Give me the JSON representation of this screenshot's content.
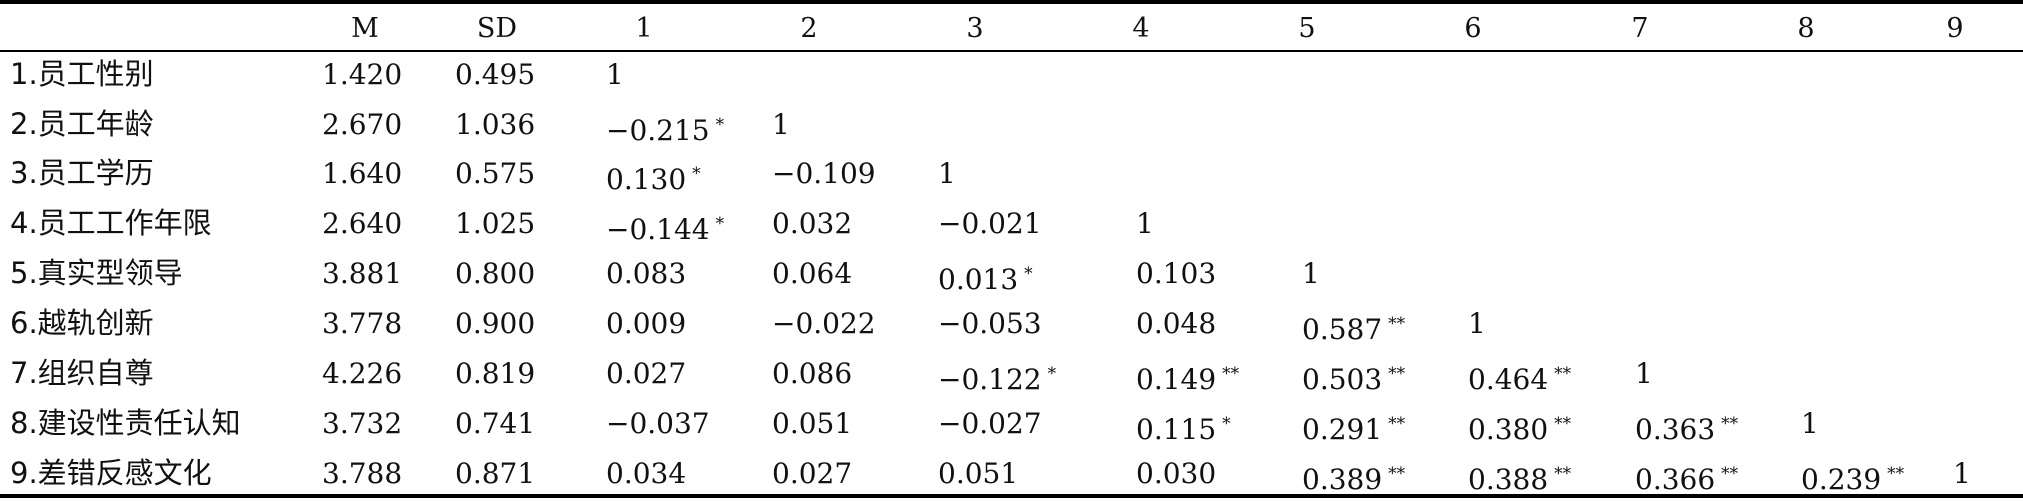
{
  "header": [
    "M",
    "SD",
    "1",
    "2",
    "3",
    "4",
    "5",
    "6",
    "7",
    "8",
    "9"
  ],
  "rows": [
    {
      "label": "1.员工性别",
      "m": "1.420",
      "sd": "0.495",
      "cells": [
        {
          "v": "1",
          "s": ""
        }
      ]
    },
    {
      "label": "2.员工年龄",
      "m": "2.670",
      "sd": "1.036",
      "cells": [
        {
          "v": "−0.215",
          "s": "*"
        },
        {
          "v": "1",
          "s": ""
        }
      ]
    },
    {
      "label": "3.员工学历",
      "m": "1.640",
      "sd": "0.575",
      "cells": [
        {
          "v": "0.130",
          "s": "*"
        },
        {
          "v": "−0.109",
          "s": ""
        },
        {
          "v": "1",
          "s": ""
        }
      ]
    },
    {
      "label": "4.员工工作年限",
      "m": "2.640",
      "sd": "1.025",
      "cells": [
        {
          "v": "−0.144",
          "s": "*"
        },
        {
          "v": "0.032",
          "s": ""
        },
        {
          "v": "−0.021",
          "s": ""
        },
        {
          "v": "1",
          "s": ""
        }
      ]
    },
    {
      "label": "5.真实型领导",
      "m": "3.881",
      "sd": "0.800",
      "cells": [
        {
          "v": "0.083",
          "s": ""
        },
        {
          "v": "0.064",
          "s": ""
        },
        {
          "v": "0.013",
          "s": "*"
        },
        {
          "v": "0.103",
          "s": ""
        },
        {
          "v": "1",
          "s": ""
        }
      ]
    },
    {
      "label": "6.越轨创新",
      "m": "3.778",
      "sd": "0.900",
      "cells": [
        {
          "v": "0.009",
          "s": ""
        },
        {
          "v": "−0.022",
          "s": ""
        },
        {
          "v": "−0.053",
          "s": ""
        },
        {
          "v": "0.048",
          "s": ""
        },
        {
          "v": "0.587",
          "s": "**"
        },
        {
          "v": "1",
          "s": ""
        }
      ]
    },
    {
      "label": "7.组织自尊",
      "m": "4.226",
      "sd": "0.819",
      "cells": [
        {
          "v": "0.027",
          "s": ""
        },
        {
          "v": "0.086",
          "s": ""
        },
        {
          "v": "−0.122",
          "s": "*"
        },
        {
          "v": "0.149",
          "s": "**"
        },
        {
          "v": "0.503",
          "s": "**"
        },
        {
          "v": "0.464",
          "s": "**"
        },
        {
          "v": "1",
          "s": ""
        }
      ]
    },
    {
      "label": "8.建设性责任认知",
      "m": "3.732",
      "sd": "0.741",
      "cells": [
        {
          "v": "−0.037",
          "s": ""
        },
        {
          "v": "0.051",
          "s": ""
        },
        {
          "v": "−0.027",
          "s": ""
        },
        {
          "v": "0.115",
          "s": "*"
        },
        {
          "v": "0.291",
          "s": "**"
        },
        {
          "v": "0.380",
          "s": "**"
        },
        {
          "v": "0.363",
          "s": "**"
        },
        {
          "v": "1",
          "s": ""
        }
      ]
    },
    {
      "label": "9.差错反感文化",
      "m": "3.788",
      "sd": "0.871",
      "cells": [
        {
          "v": "0.034",
          "s": ""
        },
        {
          "v": "0.027",
          "s": ""
        },
        {
          "v": "0.051",
          "s": ""
        },
        {
          "v": "0.030",
          "s": ""
        },
        {
          "v": "0.389",
          "s": "**"
        },
        {
          "v": "0.388",
          "s": "**"
        },
        {
          "v": "0.366",
          "s": "**"
        },
        {
          "v": "0.239",
          "s": "**"
        },
        {
          "v": "1",
          "s": ""
        }
      ]
    }
  ]
}
